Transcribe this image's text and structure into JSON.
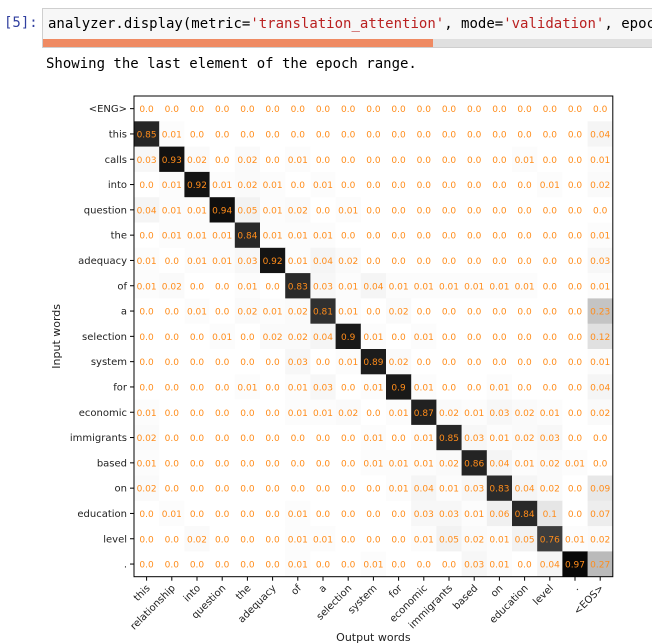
{
  "cell": {
    "prompt": "[5]:",
    "code": {
      "func": "analyzer.display(",
      "arg1_name": "metric=",
      "arg1_value": "'translation_attention'",
      "sep1": ", ",
      "arg2_name": "mode=",
      "arg2_value": "'validation'",
      "sep2": ", ",
      "arg3_partial": "epoch_ra"
    },
    "progress": 0.61
  },
  "output": {
    "status_text": "Showing the last element of the epoch range."
  },
  "chart_data": {
    "type": "heatmap",
    "xlabel": "Output words",
    "ylabel": "Input words",
    "x": [
      "this",
      "relationship",
      "into",
      "question",
      "the",
      "adequacy",
      "of",
      "a",
      "selection",
      "system",
      "for",
      "economic",
      "immigrants",
      "based",
      "on",
      "education",
      "level",
      ".",
      "<EOS>"
    ],
    "y": [
      "<ENG>",
      "this",
      "calls",
      "into",
      "question",
      "the",
      "adequacy",
      "of",
      "a",
      "selection",
      "system",
      "for",
      "economic",
      "immigrants",
      "based",
      "on",
      "education",
      "level",
      "."
    ],
    "values": [
      [
        0.0,
        0.0,
        0.0,
        0.0,
        0.0,
        0.0,
        0.0,
        0.0,
        0.0,
        0.0,
        0.0,
        0.0,
        0.0,
        0.0,
        0.0,
        0.0,
        0.0,
        0.0,
        0.0
      ],
      [
        0.85,
        0.01,
        0.0,
        0.0,
        0.0,
        0.0,
        0.0,
        0.0,
        0.0,
        0.0,
        0.0,
        0.0,
        0.0,
        0.0,
        0.0,
        0.0,
        0.0,
        0.0,
        0.04
      ],
      [
        0.03,
        0.93,
        0.02,
        0.0,
        0.02,
        0.0,
        0.01,
        0.0,
        0.0,
        0.0,
        0.0,
        0.0,
        0.0,
        0.0,
        0.0,
        0.01,
        0.0,
        0.0,
        0.01
      ],
      [
        0.0,
        0.01,
        0.92,
        0.01,
        0.02,
        0.01,
        0.0,
        0.01,
        0.0,
        0.0,
        0.0,
        0.0,
        0.0,
        0.0,
        0.0,
        0.0,
        0.01,
        0.0,
        0.02
      ],
      [
        0.04,
        0.01,
        0.01,
        0.94,
        0.05,
        0.01,
        0.02,
        0.0,
        0.01,
        0.0,
        0.0,
        0.0,
        0.0,
        0.0,
        0.0,
        0.0,
        0.0,
        0.0,
        0.0
      ],
      [
        0.0,
        0.01,
        0.01,
        0.01,
        0.84,
        0.01,
        0.01,
        0.01,
        0.0,
        0.0,
        0.0,
        0.0,
        0.0,
        0.0,
        0.0,
        0.0,
        0.0,
        0.0,
        0.01
      ],
      [
        0.01,
        0.0,
        0.01,
        0.01,
        0.03,
        0.92,
        0.01,
        0.04,
        0.02,
        0.0,
        0.0,
        0.0,
        0.0,
        0.0,
        0.0,
        0.0,
        0.0,
        0.0,
        0.03
      ],
      [
        0.01,
        0.02,
        0.0,
        0.0,
        0.01,
        0.0,
        0.83,
        0.03,
        0.01,
        0.04,
        0.01,
        0.01,
        0.01,
        0.01,
        0.01,
        0.01,
        0.0,
        0.0,
        0.01
      ],
      [
        0.0,
        0.0,
        0.01,
        0.0,
        0.02,
        0.01,
        0.02,
        0.81,
        0.01,
        0.0,
        0.02,
        0.0,
        0.0,
        0.0,
        0.0,
        0.0,
        0.0,
        0.0,
        0.23
      ],
      [
        0.0,
        0.0,
        0.0,
        0.01,
        0.0,
        0.02,
        0.02,
        0.04,
        0.9,
        0.01,
        0.0,
        0.01,
        0.0,
        0.0,
        0.0,
        0.0,
        0.0,
        0.0,
        0.12
      ],
      [
        0.0,
        0.0,
        0.0,
        0.0,
        0.0,
        0.0,
        0.03,
        0.0,
        0.01,
        0.89,
        0.02,
        0.0,
        0.0,
        0.0,
        0.0,
        0.0,
        0.0,
        0.0,
        0.01
      ],
      [
        0.0,
        0.0,
        0.0,
        0.0,
        0.01,
        0.0,
        0.01,
        0.03,
        0.0,
        0.01,
        0.9,
        0.01,
        0.0,
        0.0,
        0.01,
        0.0,
        0.0,
        0.0,
        0.04
      ],
      [
        0.01,
        0.0,
        0.0,
        0.0,
        0.0,
        0.0,
        0.01,
        0.01,
        0.02,
        0.0,
        0.01,
        0.87,
        0.02,
        0.01,
        0.03,
        0.02,
        0.01,
        0.0,
        0.02
      ],
      [
        0.02,
        0.0,
        0.0,
        0.0,
        0.0,
        0.0,
        0.0,
        0.0,
        0.0,
        0.01,
        0.0,
        0.01,
        0.85,
        0.03,
        0.01,
        0.02,
        0.03,
        0.0,
        0.0
      ],
      [
        0.01,
        0.0,
        0.0,
        0.0,
        0.0,
        0.0,
        0.0,
        0.0,
        0.0,
        0.01,
        0.01,
        0.01,
        0.02,
        0.86,
        0.04,
        0.01,
        0.02,
        0.01,
        0.0
      ],
      [
        0.02,
        0.0,
        0.0,
        0.0,
        0.0,
        0.0,
        0.0,
        0.0,
        0.0,
        0.0,
        0.01,
        0.04,
        0.01,
        0.03,
        0.83,
        0.04,
        0.02,
        0.0,
        0.09
      ],
      [
        0.0,
        0.01,
        0.0,
        0.0,
        0.0,
        0.0,
        0.01,
        0.0,
        0.0,
        0.0,
        0.0,
        0.03,
        0.03,
        0.01,
        0.06,
        0.84,
        0.1,
        0.0,
        0.07
      ],
      [
        0.0,
        0.0,
        0.02,
        0.0,
        0.0,
        0.0,
        0.01,
        0.01,
        0.0,
        0.0,
        0.0,
        0.01,
        0.05,
        0.02,
        0.01,
        0.05,
        0.76,
        0.01,
        0.02
      ],
      [
        0.0,
        0.0,
        0.0,
        0.0,
        0.0,
        0.0,
        0.01,
        0.0,
        0.0,
        0.01,
        0.0,
        0.0,
        0.0,
        0.03,
        0.01,
        0.0,
        0.04,
        0.97,
        0.27
      ]
    ],
    "colormap": "greys",
    "cell_text_color": "#ff8c1a",
    "grid": false
  }
}
